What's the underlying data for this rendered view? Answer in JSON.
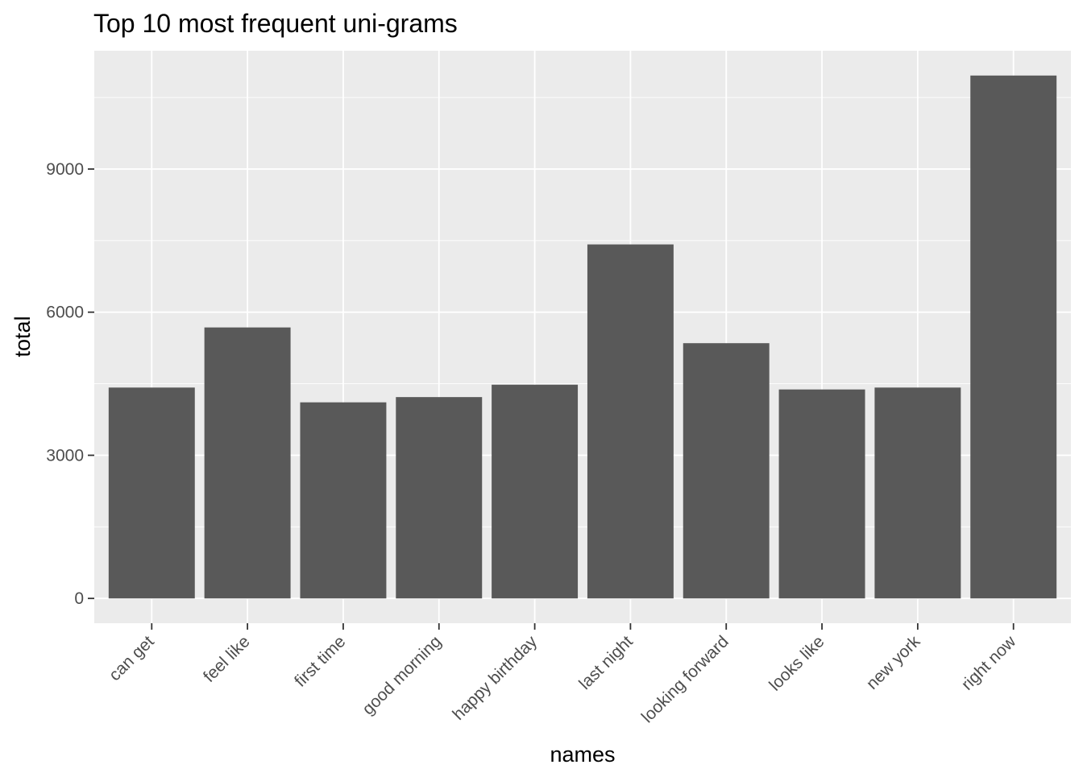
{
  "chart_data": {
    "type": "bar",
    "title": "Top 10 most frequent uni-grams",
    "xlabel": "names",
    "ylabel": "total",
    "categories": [
      "can get",
      "feel like",
      "first time",
      "good morning",
      "happy birthday",
      "last night",
      "looking forward",
      "looks like",
      "new york",
      "right now"
    ],
    "values": [
      4420,
      5680,
      4110,
      4220,
      4480,
      7420,
      5350,
      4380,
      4420,
      10960
    ],
    "yticks": [
      0,
      3000,
      6000,
      9000
    ],
    "ylim": [
      -520,
      11480
    ],
    "grid": true,
    "legend": "none",
    "colors": {
      "bar": "#595959",
      "panel": "#ebebeb",
      "grid": "#ffffff",
      "tick_text": "#4d4d4d",
      "tick_mark": "#333333"
    }
  }
}
